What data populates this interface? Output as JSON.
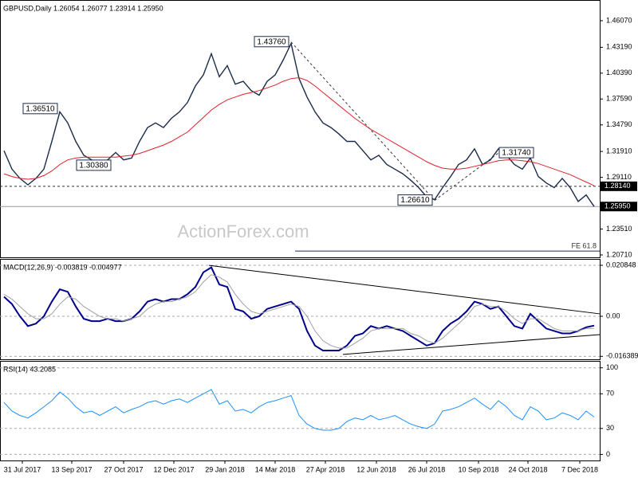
{
  "chart_data": [
    {
      "type": "line",
      "title": "GBPUSD,Daily 1.26054 1.26077 1.23914 1.25950",
      "watermark": "ActionForex.com",
      "xlim": [
        0,
        74.5
      ],
      "ylim": [
        1.2045,
        1.4831
      ],
      "yticks": [
        {
          "value": 1.4607,
          "label": "1.46070"
        },
        {
          "value": 1.4319,
          "label": "1.43190"
        },
        {
          "value": 1.4039,
          "label": "1.40390"
        },
        {
          "value": 1.3759,
          "label": "1.37590"
        },
        {
          "value": 1.3479,
          "label": "1.34790"
        },
        {
          "value": 1.3191,
          "label": "1.31910"
        },
        {
          "value": 1.2911,
          "label": "1.29110"
        },
        {
          "value": 1.2351,
          "label": "1.23510"
        },
        {
          "value": 1.2071,
          "label": "1.20710"
        }
      ],
      "grid": false,
      "series": [
        {
          "color": "#1c2b4a",
          "values": [
            1.32,
            1.3,
            1.29,
            1.283,
            1.29,
            1.3,
            1.33,
            1.362,
            1.35,
            1.33,
            1.315,
            1.31,
            1.305,
            1.31,
            1.318,
            1.31,
            1.312,
            1.33,
            1.345,
            1.35,
            1.345,
            1.355,
            1.362,
            1.372,
            1.39,
            1.402,
            1.425,
            1.4,
            1.412,
            1.392,
            1.395,
            1.385,
            1.38,
            1.395,
            1.402,
            1.418,
            1.436,
            1.398,
            1.378,
            1.362,
            1.35,
            1.345,
            1.338,
            1.33,
            1.33,
            1.32,
            1.31,
            1.315,
            1.305,
            1.3,
            1.295,
            1.288,
            1.28,
            1.27,
            1.267,
            1.28,
            1.292,
            1.305,
            1.31,
            1.322,
            1.305,
            1.31,
            1.322,
            1.315,
            1.305,
            1.3,
            1.312,
            1.292,
            1.285,
            1.28,
            1.29,
            1.28,
            1.265,
            1.272,
            1.2595
          ]
        },
        {
          "color": "#e0202a",
          "values": [
            1.295,
            1.292,
            1.29,
            1.289,
            1.29,
            1.293,
            1.298,
            1.305,
            1.31,
            1.312,
            1.313,
            1.313,
            1.313,
            1.313,
            1.313,
            1.314,
            1.315,
            1.317,
            1.32,
            1.323,
            1.326,
            1.33,
            1.335,
            1.34,
            1.348,
            1.356,
            1.364,
            1.37,
            1.375,
            1.378,
            1.381,
            1.383,
            1.385,
            1.388,
            1.391,
            1.395,
            1.398,
            1.399,
            1.396,
            1.39,
            1.383,
            1.376,
            1.369,
            1.362,
            1.355,
            1.349,
            1.343,
            1.338,
            1.333,
            1.328,
            1.323,
            1.318,
            1.313,
            1.308,
            1.304,
            1.301,
            1.3,
            1.3,
            1.301,
            1.303,
            1.305,
            1.307,
            1.309,
            1.31,
            1.31,
            1.309,
            1.308,
            1.306,
            1.303,
            1.3,
            1.297,
            1.294,
            1.29,
            1.286,
            1.282
          ]
        }
      ],
      "annotations": [
        {
          "label": "1.43760",
          "x": 36,
          "value": 1.4376
        },
        {
          "label": "1.36510",
          "x": 7,
          "value": 1.3651
        },
        {
          "label": "1.30380",
          "x": 9,
          "value": 1.3038
        },
        {
          "label": "1.26610",
          "x": 54,
          "value": 1.2661
        },
        {
          "label": "1.31740",
          "x": 62,
          "value": 1.3174
        }
      ],
      "levels": [
        {
          "label": "1.28140",
          "value": 1.2814,
          "style": "dashed"
        },
        {
          "label": "1.25950",
          "value": 1.2595,
          "style": "solid"
        }
      ],
      "fe_line": {
        "label": "FE 61.8",
        "value": 1.2113,
        "x_start": 36.5
      }
    },
    {
      "type": "line",
      "title": "MACD(12,26,9) -0.003819 -0.004977",
      "xlim": [
        0,
        74.5
      ],
      "ylim": [
        -0.01759,
        0.02346
      ],
      "yticks": [
        0.020848,
        {
          "value": 0,
          "label": "0.00"
        },
        -0.016389
      ],
      "grid": true,
      "series": [
        {
          "color": "#00008b",
          "values": [
            0.008,
            0.005,
            0.0,
            -0.004,
            -0.003,
            0.0,
            0.006,
            0.011,
            0.01,
            0.004,
            -0.001,
            -0.002,
            -0.002,
            -0.001,
            -0.002,
            -0.002,
            -0.001,
            0.002,
            0.006,
            0.007,
            0.006,
            0.007,
            0.007,
            0.009,
            0.012,
            0.018,
            0.02,
            0.013,
            0.012,
            0.003,
            0.002,
            -0.001,
            0.0,
            0.003,
            0.004,
            0.005,
            0.006,
            0.003,
            -0.006,
            -0.012,
            -0.014,
            -0.014,
            -0.014,
            -0.012,
            -0.008,
            -0.007,
            -0.004,
            -0.005,
            -0.004,
            -0.005,
            -0.006,
            -0.008,
            -0.01,
            -0.012,
            -0.011,
            -0.006,
            -0.003,
            -0.001,
            0.002,
            0.006,
            0.005,
            0.003,
            0.004,
            0.0,
            -0.004,
            -0.005,
            0.001,
            -0.002,
            -0.005,
            -0.006,
            -0.007,
            -0.007,
            -0.006,
            -0.0045,
            -0.003819
          ]
        },
        {
          "color": "#a0a0a0",
          "values": [
            0.009,
            0.007,
            0.004,
            0.001,
            -0.001,
            -0.001,
            0.001,
            0.005,
            0.008,
            0.007,
            0.004,
            0.002,
            0.0,
            -0.001,
            -0.001,
            -0.002,
            -0.001,
            0.0,
            0.003,
            0.005,
            0.006,
            0.006,
            0.007,
            0.008,
            0.01,
            0.014,
            0.017,
            0.016,
            0.014,
            0.009,
            0.005,
            0.002,
            0.001,
            0.002,
            0.003,
            0.004,
            0.005,
            0.004,
            0.0,
            -0.006,
            -0.01,
            -0.012,
            -0.013,
            -0.013,
            -0.011,
            -0.009,
            -0.006,
            -0.005,
            -0.005,
            -0.005,
            -0.005,
            -0.007,
            -0.008,
            -0.01,
            -0.011,
            -0.009,
            -0.006,
            -0.003,
            0.0,
            0.004,
            0.005,
            0.004,
            0.004,
            0.002,
            -0.001,
            -0.003,
            -0.001,
            -0.001,
            -0.003,
            -0.005,
            -0.006,
            -0.006,
            -0.006,
            -0.005,
            -0.004977
          ]
        }
      ],
      "trendlines": [
        {
          "x": [
            25.7,
            74.7
          ],
          "values": [
            0.0208,
            0.001
          ]
        },
        {
          "x": [
            42.5,
            74.7
          ],
          "values": [
            -0.0156,
            -0.0075
          ]
        }
      ]
    },
    {
      "type": "line",
      "title": "RSI(14) 43.2085",
      "xlim": [
        0,
        74.5
      ],
      "ylim": [
        -7,
        108
      ],
      "yticks": [
        100,
        70,
        30,
        0
      ],
      "grid": true,
      "xticks": [
        {
          "value": 2.3,
          "label": "31 Jul 2017"
        },
        {
          "value": 8.5,
          "label": "13 Sep 2017"
        },
        {
          "value": 15,
          "label": "27 Oct 2017"
        },
        {
          "value": 21.3,
          "label": "12 Dec 2017"
        },
        {
          "value": 27.7,
          "label": "29 Jan 2018"
        },
        {
          "value": 34,
          "label": "14 Mar 2018"
        },
        {
          "value": 40.3,
          "label": "27 Apr 2018"
        },
        {
          "value": 46.7,
          "label": "12 Jun 2018"
        },
        {
          "value": 53,
          "label": "26 Jul 2018"
        },
        {
          "value": 59.5,
          "label": "10 Sep 2018"
        },
        {
          "value": 65.7,
          "label": "24 Oct 2018"
        },
        {
          "value": 72.2,
          "label": "7 Dec 2018"
        }
      ],
      "series": [
        {
          "color": "#1e90ff",
          "values": [
            60,
            50,
            45,
            42,
            48,
            55,
            62,
            72,
            65,
            55,
            48,
            50,
            45,
            50,
            55,
            48,
            52,
            55,
            60,
            62,
            58,
            62,
            64,
            60,
            65,
            70,
            75,
            58,
            62,
            50,
            52,
            48,
            55,
            60,
            62,
            65,
            68,
            45,
            35,
            30,
            28,
            28,
            30,
            38,
            42,
            40,
            45,
            40,
            42,
            45,
            40,
            35,
            32,
            30,
            35,
            50,
            52,
            55,
            60,
            65,
            58,
            52,
            62,
            55,
            45,
            40,
            55,
            50,
            40,
            42,
            48,
            45,
            40,
            50,
            43.2085
          ]
        }
      ]
    }
  ]
}
